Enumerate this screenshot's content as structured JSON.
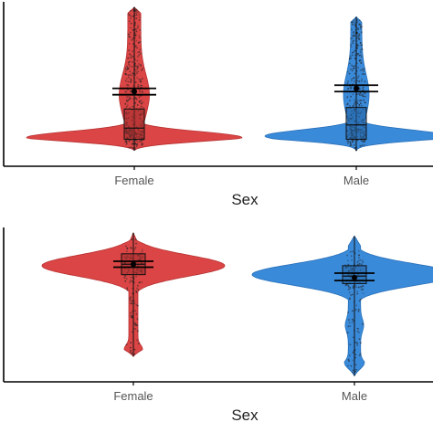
{
  "chart_data": [
    {
      "type": "violin",
      "xlabel": "Sex",
      "ylabel": "",
      "categories": [
        "Female",
        "Male"
      ],
      "y_tick_labels": [],
      "grid": false,
      "legend": "none",
      "series": [
        {
          "category": "Female",
          "color": "#d93b3b",
          "points_approx": 400,
          "violin": {
            "min": 0.1,
            "max": 1.0,
            "mode": 0.18
          },
          "box": {
            "q1": 0.17,
            "median": 0.24,
            "q3": 0.36
          },
          "mean": 0.47,
          "ci": [
            0.45,
            0.49
          ]
        },
        {
          "category": "Male",
          "color": "#2f84d8",
          "points_approx": 380,
          "violin": {
            "min": 0.1,
            "max": 0.94,
            "mode": 0.19
          },
          "box": {
            "q1": 0.17,
            "median": 0.26,
            "q3": 0.37
          },
          "mean": 0.49,
          "ci": [
            0.47,
            0.51
          ]
        }
      ]
    },
    {
      "type": "violin",
      "xlabel": "Sex",
      "ylabel": "",
      "categories": [
        "Female",
        "Male"
      ],
      "y_tick_labels": [],
      "grid": false,
      "legend": "none",
      "series": [
        {
          "category": "Female",
          "color": "#d93b3b",
          "points_approx": 150,
          "violin": {
            "min": 0.17,
            "max": 1.0,
            "mode": 0.78
          },
          "box": {
            "q1": 0.72,
            "median": 0.79,
            "q3": 0.86
          },
          "mean": 0.79,
          "ci": [
            0.77,
            0.81
          ]
        },
        {
          "category": "Male",
          "color": "#2f84d8",
          "points_approx": 150,
          "violin": {
            "min": 0.04,
            "max": 0.98,
            "mode": 0.72
          },
          "box": {
            "q1": 0.66,
            "median": 0.71,
            "q3": 0.78
          },
          "mean": 0.7,
          "ci": [
            0.68,
            0.73
          ]
        }
      ]
    }
  ]
}
